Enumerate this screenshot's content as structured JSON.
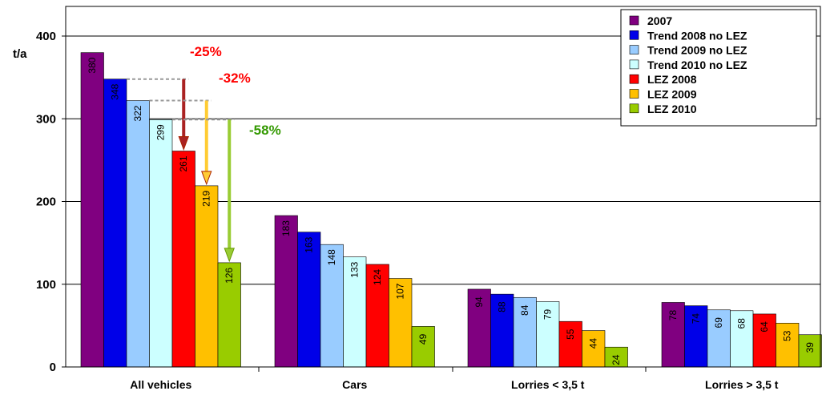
{
  "chart_data": {
    "type": "bar",
    "title": "",
    "xlabel": "",
    "ylabel": "t/a",
    "ylim": [
      0,
      420
    ],
    "yticks": [
      "0",
      "100",
      "200",
      "300",
      "400"
    ],
    "ytick_values": [
      0,
      100,
      200,
      300,
      400
    ],
    "categories": [
      "All vehicles",
      "Cars",
      "Lorries < 3,5 t",
      "Lorries > 3,5 t"
    ],
    "series": [
      {
        "name": "2007",
        "color": "#800080",
        "values": [
          380,
          183,
          94,
          78
        ]
      },
      {
        "name": "Trend 2008 no LEZ",
        "color": "#0000e8",
        "values": [
          348,
          163,
          88,
          74
        ]
      },
      {
        "name": "Trend 2009 no LEZ",
        "color": "#99ccff",
        "values": [
          322,
          148,
          84,
          69
        ]
      },
      {
        "name": "Trend 2010 no LEZ",
        "color": "#ccffff",
        "values": [
          299,
          133,
          79,
          68
        ]
      },
      {
        "name": "LEZ 2008",
        "color": "#ff0000",
        "values": [
          261,
          124,
          55,
          64
        ]
      },
      {
        "name": "LEZ 2009",
        "color": "#ffc000",
        "values": [
          219,
          107,
          44,
          53
        ]
      },
      {
        "name": "LEZ 2010",
        "color": "#99cc00",
        "values": [
          126,
          49,
          24,
          39
        ]
      }
    ],
    "grid": true,
    "legend_position": "top-right",
    "annotations": [
      {
        "text": "-25%",
        "color": "#ff0000",
        "from_series": 1,
        "to_series": 4
      },
      {
        "text": "-32%",
        "color": "#ff0000",
        "from_series": 2,
        "to_series": 5
      },
      {
        "text": "-58%",
        "color": "#339900",
        "from_series": 3,
        "to_series": 6
      }
    ]
  }
}
